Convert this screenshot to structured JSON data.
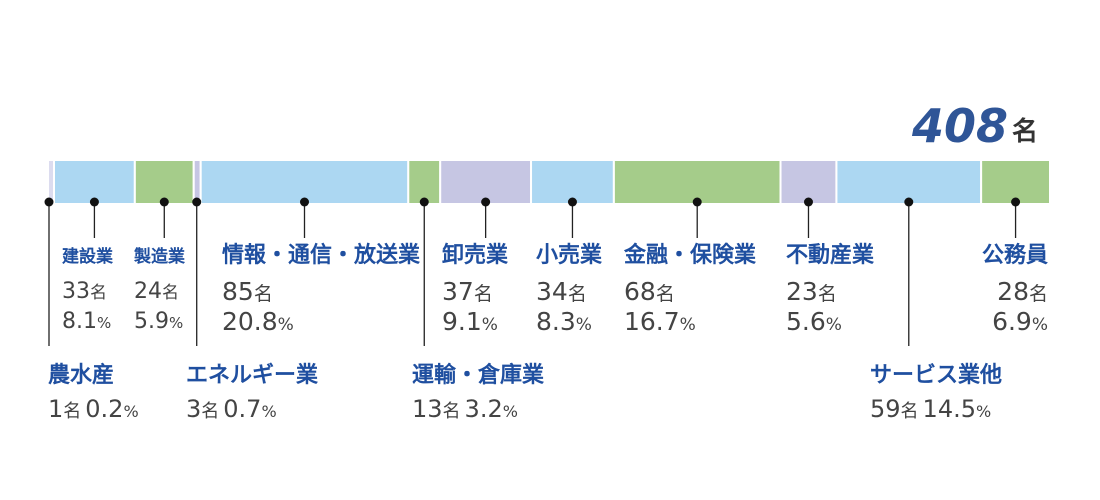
{
  "chart_data": {
    "type": "bar",
    "subtype": "100% stacked horizontal bar",
    "total": {
      "value": "408",
      "unit": "名"
    },
    "unit_label": "名",
    "percent_label": "%",
    "colors": {
      "blue": "#acd7f2",
      "green": "#a5cc8a",
      "purple": "#c6c6e3",
      "pale": "#dcdcef",
      "label": "#1f4fa0",
      "total": "#2f5597"
    },
    "segments": [
      {
        "name": "農水産",
        "count": 1,
        "percent": 0.2,
        "color": "#dcdcef"
      },
      {
        "name": "建設業",
        "count": 33,
        "percent": 8.1,
        "color": "#acd7f2"
      },
      {
        "name": "製造業",
        "count": 24,
        "percent": 5.9,
        "color": "#a5cc8a"
      },
      {
        "name": "エネルギー業",
        "count": 3,
        "percent": 0.7,
        "color": "#c6c6e3"
      },
      {
        "name": "情報・通信・放送業",
        "count": 85,
        "percent": 20.8,
        "color": "#acd7f2"
      },
      {
        "name": "運輸・倉庫業",
        "count": 13,
        "percent": 3.2,
        "color": "#a5cc8a"
      },
      {
        "name": "卸売業",
        "count": 37,
        "percent": 9.1,
        "color": "#c6c6e3"
      },
      {
        "name": "小売業",
        "count": 34,
        "percent": 8.3,
        "color": "#acd7f2"
      },
      {
        "name": "金融・保険業",
        "count": 68,
        "percent": 16.7,
        "color": "#a5cc8a"
      },
      {
        "name": "不動産業",
        "count": 23,
        "percent": 5.6,
        "color": "#c6c6e3"
      },
      {
        "name": "サービス業他",
        "count": 59,
        "percent": 14.5,
        "color": "#acd7f2"
      },
      {
        "name": "公務員",
        "count": 28,
        "percent": 6.9,
        "color": "#a5cc8a"
      }
    ]
  }
}
